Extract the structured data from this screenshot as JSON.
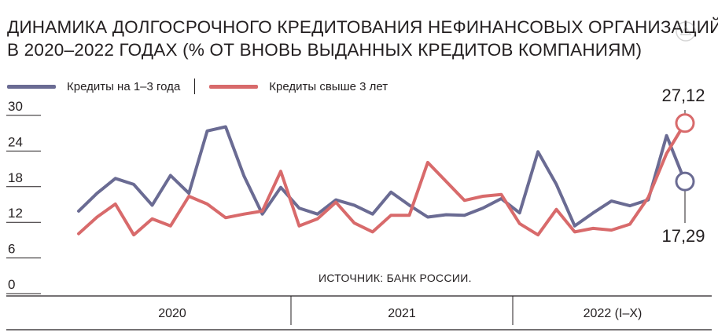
{
  "title_lines": [
    "ДИНАМИКА ДОЛГОСРОЧНОГО КРЕДИТОВАНИЯ НЕФИНАНСОВЫХ ОРГАНИЗАЦИЙ",
    "В 2020–2022 ГОДАХ (% ОТ ВНОВЬ ВЫДАННЫХ КРЕДИТОВ КОМПАНИЯМ)"
  ],
  "legend": [
    {
      "label": "Кредиты на 1–3 года",
      "color": "#6a6b93"
    },
    {
      "label": "Кредиты свыше 3 лет",
      "color": "#d86a6b"
    }
  ],
  "source": "ИСТОЧНИК: БАНК РОССИИ.",
  "chart_data": {
    "type": "line",
    "x": [
      "2020-01",
      "2020-02",
      "2020-03",
      "2020-04",
      "2020-05",
      "2020-06",
      "2020-07",
      "2020-08",
      "2020-09",
      "2020-10",
      "2020-11",
      "2020-12",
      "2021-01",
      "2021-02",
      "2021-03",
      "2021-04",
      "2021-05",
      "2021-06",
      "2021-07",
      "2021-08",
      "2021-09",
      "2021-10",
      "2021-11",
      "2021-12",
      "2022-01",
      "2022-02",
      "2022-03",
      "2022-04",
      "2022-05",
      "2022-06",
      "2022-07",
      "2022-08",
      "2022-09",
      "2022-10"
    ],
    "x_groups": [
      "2020",
      "2021",
      "2022 (I–X)"
    ],
    "series": [
      {
        "name": "Кредиты на 1–3 года",
        "color": "#6a6b93",
        "values": [
          12.3,
          15.3,
          17.8,
          16.8,
          13.3,
          18.3,
          15.3,
          25.8,
          26.5,
          18.2,
          11.8,
          16.3,
          12.8,
          11.8,
          14.2,
          13.3,
          11.8,
          15.5,
          13.3,
          11.3,
          11.7,
          11.6,
          12.8,
          14.4,
          12.0,
          22.3,
          16.8,
          9.8,
          12.0,
          14.0,
          13.2,
          14.2,
          25.0,
          17.29
        ]
      },
      {
        "name": "Кредиты свыше 3 лет",
        "color": "#d86a6b",
        "values": [
          8.5,
          11.3,
          13.5,
          8.3,
          11.0,
          9.8,
          14.8,
          13.5,
          11.2,
          11.8,
          12.3,
          19.0,
          9.8,
          11.0,
          13.8,
          10.3,
          8.8,
          11.6,
          11.6,
          20.5,
          17.3,
          14.1,
          14.8,
          15.1,
          10.2,
          8.3,
          12.6,
          8.8,
          9.4,
          9.1,
          10.1,
          14.6,
          22.0,
          27.12
        ]
      }
    ],
    "ylim": [
      0,
      30
    ],
    "yticks": [
      "30",
      "24",
      "18",
      "12",
      "6",
      "0"
    ],
    "annotations": [
      "27,12",
      "17,29"
    ],
    "grid": false,
    "legend_position": "top-left"
  }
}
